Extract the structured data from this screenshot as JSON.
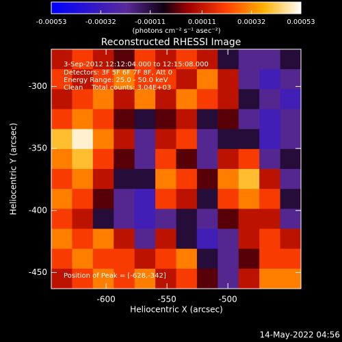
{
  "chart_data": {
    "type": "heatmap",
    "title": "Reconstructed RHESSI Image",
    "x_label": "Heliocentric X (arcsec)",
    "y_label": "Heliocentric Y (arcsec)",
    "xlim": [
      -645,
      -440
    ],
    "ylim": [
      -463,
      -270
    ],
    "xticks": [
      -600,
      -550,
      -500
    ],
    "yticks": [
      -300,
      -350,
      -400,
      -450
    ],
    "colorbar": {
      "zlim": [
        -0.00053,
        0.00053
      ],
      "ticks": [
        -0.00053,
        -0.00032,
        -0.00011,
        0.00011,
        0.00032,
        0.00053
      ],
      "label": "(photons cm⁻² s⁻¹ asec⁻²)"
    },
    "annotations": [
      "3-Sep-2012 12:12:04.000 to 12:15:08.000",
      "Detectors: 3F 5F 6F 7F 8F, Att 0",
      "Energy Range: 25.0 - 50.0 keV",
      "Clean    Total counts: 3.04E+03"
    ],
    "peak_note": "Position of Peak = [-628,-342]",
    "timestamp": "14-May-2022 04:56",
    "z": [
      [
        0.0001,
        0.0002,
        0.0001,
        0,
        0.0002,
        0.0001,
        0.0002,
        0.0001,
        -0.0001,
        -0.0002,
        -0.0002,
        -0.0001
      ],
      [
        0.0002,
        0.0001,
        0.0002,
        0.0003,
        0.0002,
        0.0002,
        0.0001,
        0.0003,
        0.0001,
        -0.0002,
        -0.0003,
        -0.0002
      ],
      [
        0.0001,
        0.0002,
        0.0003,
        0.0001,
        0.0003,
        0.0001,
        0.0003,
        0.0002,
        0.0001,
        -0.0001,
        -0.0002,
        -0.0003
      ],
      [
        0.0002,
        0.0003,
        0.0002,
        0,
        -0.0001,
        0,
        0.0001,
        -0.0001,
        0,
        -0.0002,
        -0.0003,
        -0.0002
      ],
      [
        0.0004,
        0.0005,
        0.0003,
        0.0001,
        -0.0002,
        0.0001,
        0.0002,
        -0.0002,
        -0.0001,
        -0.0001,
        -0.0003,
        -0.0002
      ],
      [
        0.0003,
        0.0004,
        0.0002,
        0,
        -0.0002,
        0.0002,
        0,
        -0.0002,
        0.0001,
        0.0002,
        -0.0002,
        -0.0001
      ],
      [
        0.0002,
        0.0003,
        0.0001,
        -0.0001,
        -0.0001,
        0.0003,
        0.0002,
        0,
        0.0003,
        0.0004,
        0.0001,
        -0.0002
      ],
      [
        0.0003,
        0.0002,
        0,
        -0.0002,
        -0.0003,
        0.0002,
        0.0001,
        -0.0001,
        0.0002,
        0.0003,
        0.0002,
        -0.0001
      ],
      [
        0.0002,
        0.0001,
        -0.0001,
        -0.0002,
        -0.0003,
        -0.0002,
        -0.0001,
        -0.0002,
        0,
        0.0001,
        0.0001,
        -0.0002
      ],
      [
        0.0003,
        0.0002,
        0.0003,
        0.0001,
        -0.0002,
        0.0001,
        -0.0001,
        -0.0003,
        -0.0002,
        0.0001,
        0.0002,
        0.0001
      ],
      [
        0.0002,
        0.0003,
        0.0002,
        0.0002,
        0.0001,
        0.0002,
        0.0003,
        -0.0001,
        -0.0002,
        0,
        0.0002,
        0.0002
      ],
      [
        0.0001,
        0.0002,
        0.0003,
        0.0002,
        0.0003,
        0.0001,
        0.0002,
        0,
        -0.0002,
        0.0001,
        0.0003,
        0.0003
      ]
    ]
  }
}
